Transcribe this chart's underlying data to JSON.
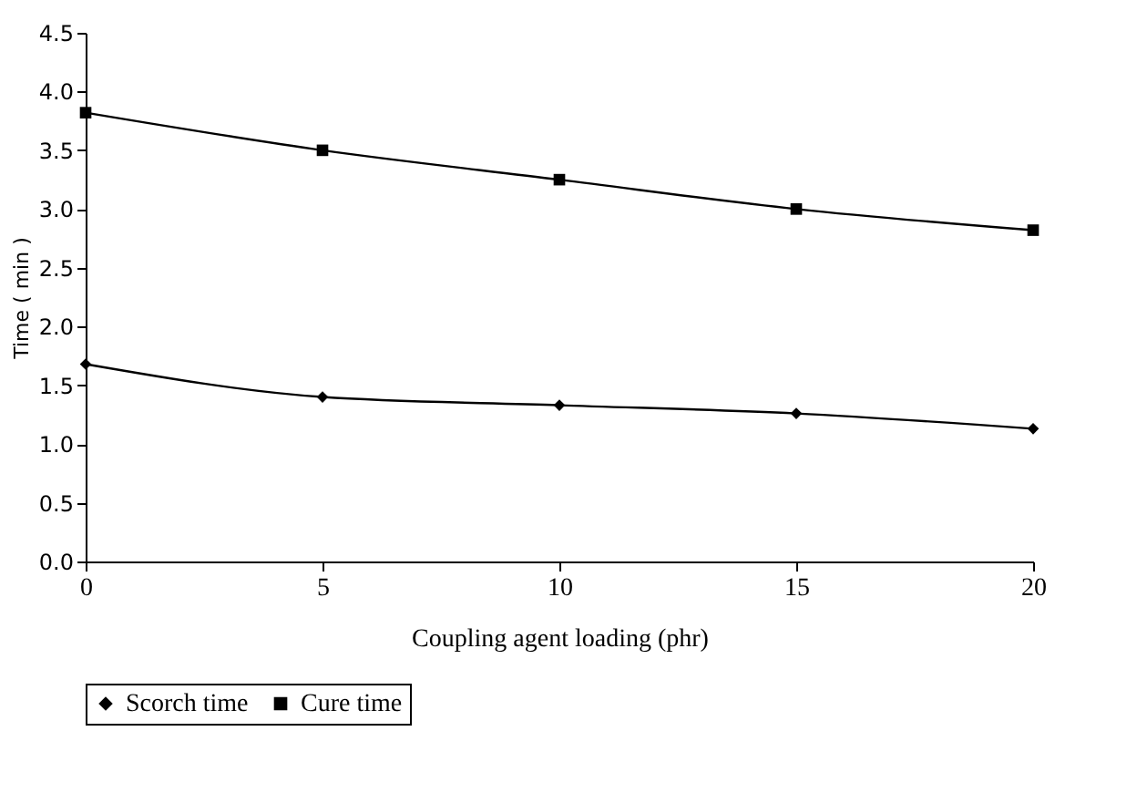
{
  "chart_data": {
    "type": "line",
    "xlabel": "Coupling agent loading (phr)",
    "ylabel": "Time ( min )",
    "x": [
      0,
      5,
      10,
      15,
      20
    ],
    "series": [
      {
        "name": "Scorch time",
        "color": "#000000",
        "marker": "diamond",
        "values": [
          1.68,
          1.4,
          1.33,
          1.26,
          1.13
        ]
      },
      {
        "name": "Cure time",
        "color": "#000000",
        "marker": "square",
        "values": [
          3.82,
          3.5,
          3.25,
          3.0,
          2.82
        ]
      }
    ],
    "xlim": [
      0,
      20
    ],
    "xticks": [
      0,
      5,
      10,
      15,
      20
    ],
    "ylim": [
      0,
      4.5
    ],
    "yticks": [
      {
        "value": 0,
        "label": "0.0"
      },
      {
        "value": 0.5,
        "label": "0.5"
      },
      {
        "value": 1,
        "label": "1.0"
      },
      {
        "value": 1.5,
        "label": "1.5"
      },
      {
        "value": 2,
        "label": "2.0"
      },
      {
        "value": 2.5,
        "label": "2.5"
      },
      {
        "value": 3,
        "label": "3.0"
      },
      {
        "value": 3.5,
        "label": "3.5"
      },
      {
        "value": 4,
        "label": "4.0"
      },
      {
        "value": 4.5,
        "label": "4.5"
      }
    ],
    "grid": false,
    "legend": "bottom",
    "line_style": "solid"
  }
}
